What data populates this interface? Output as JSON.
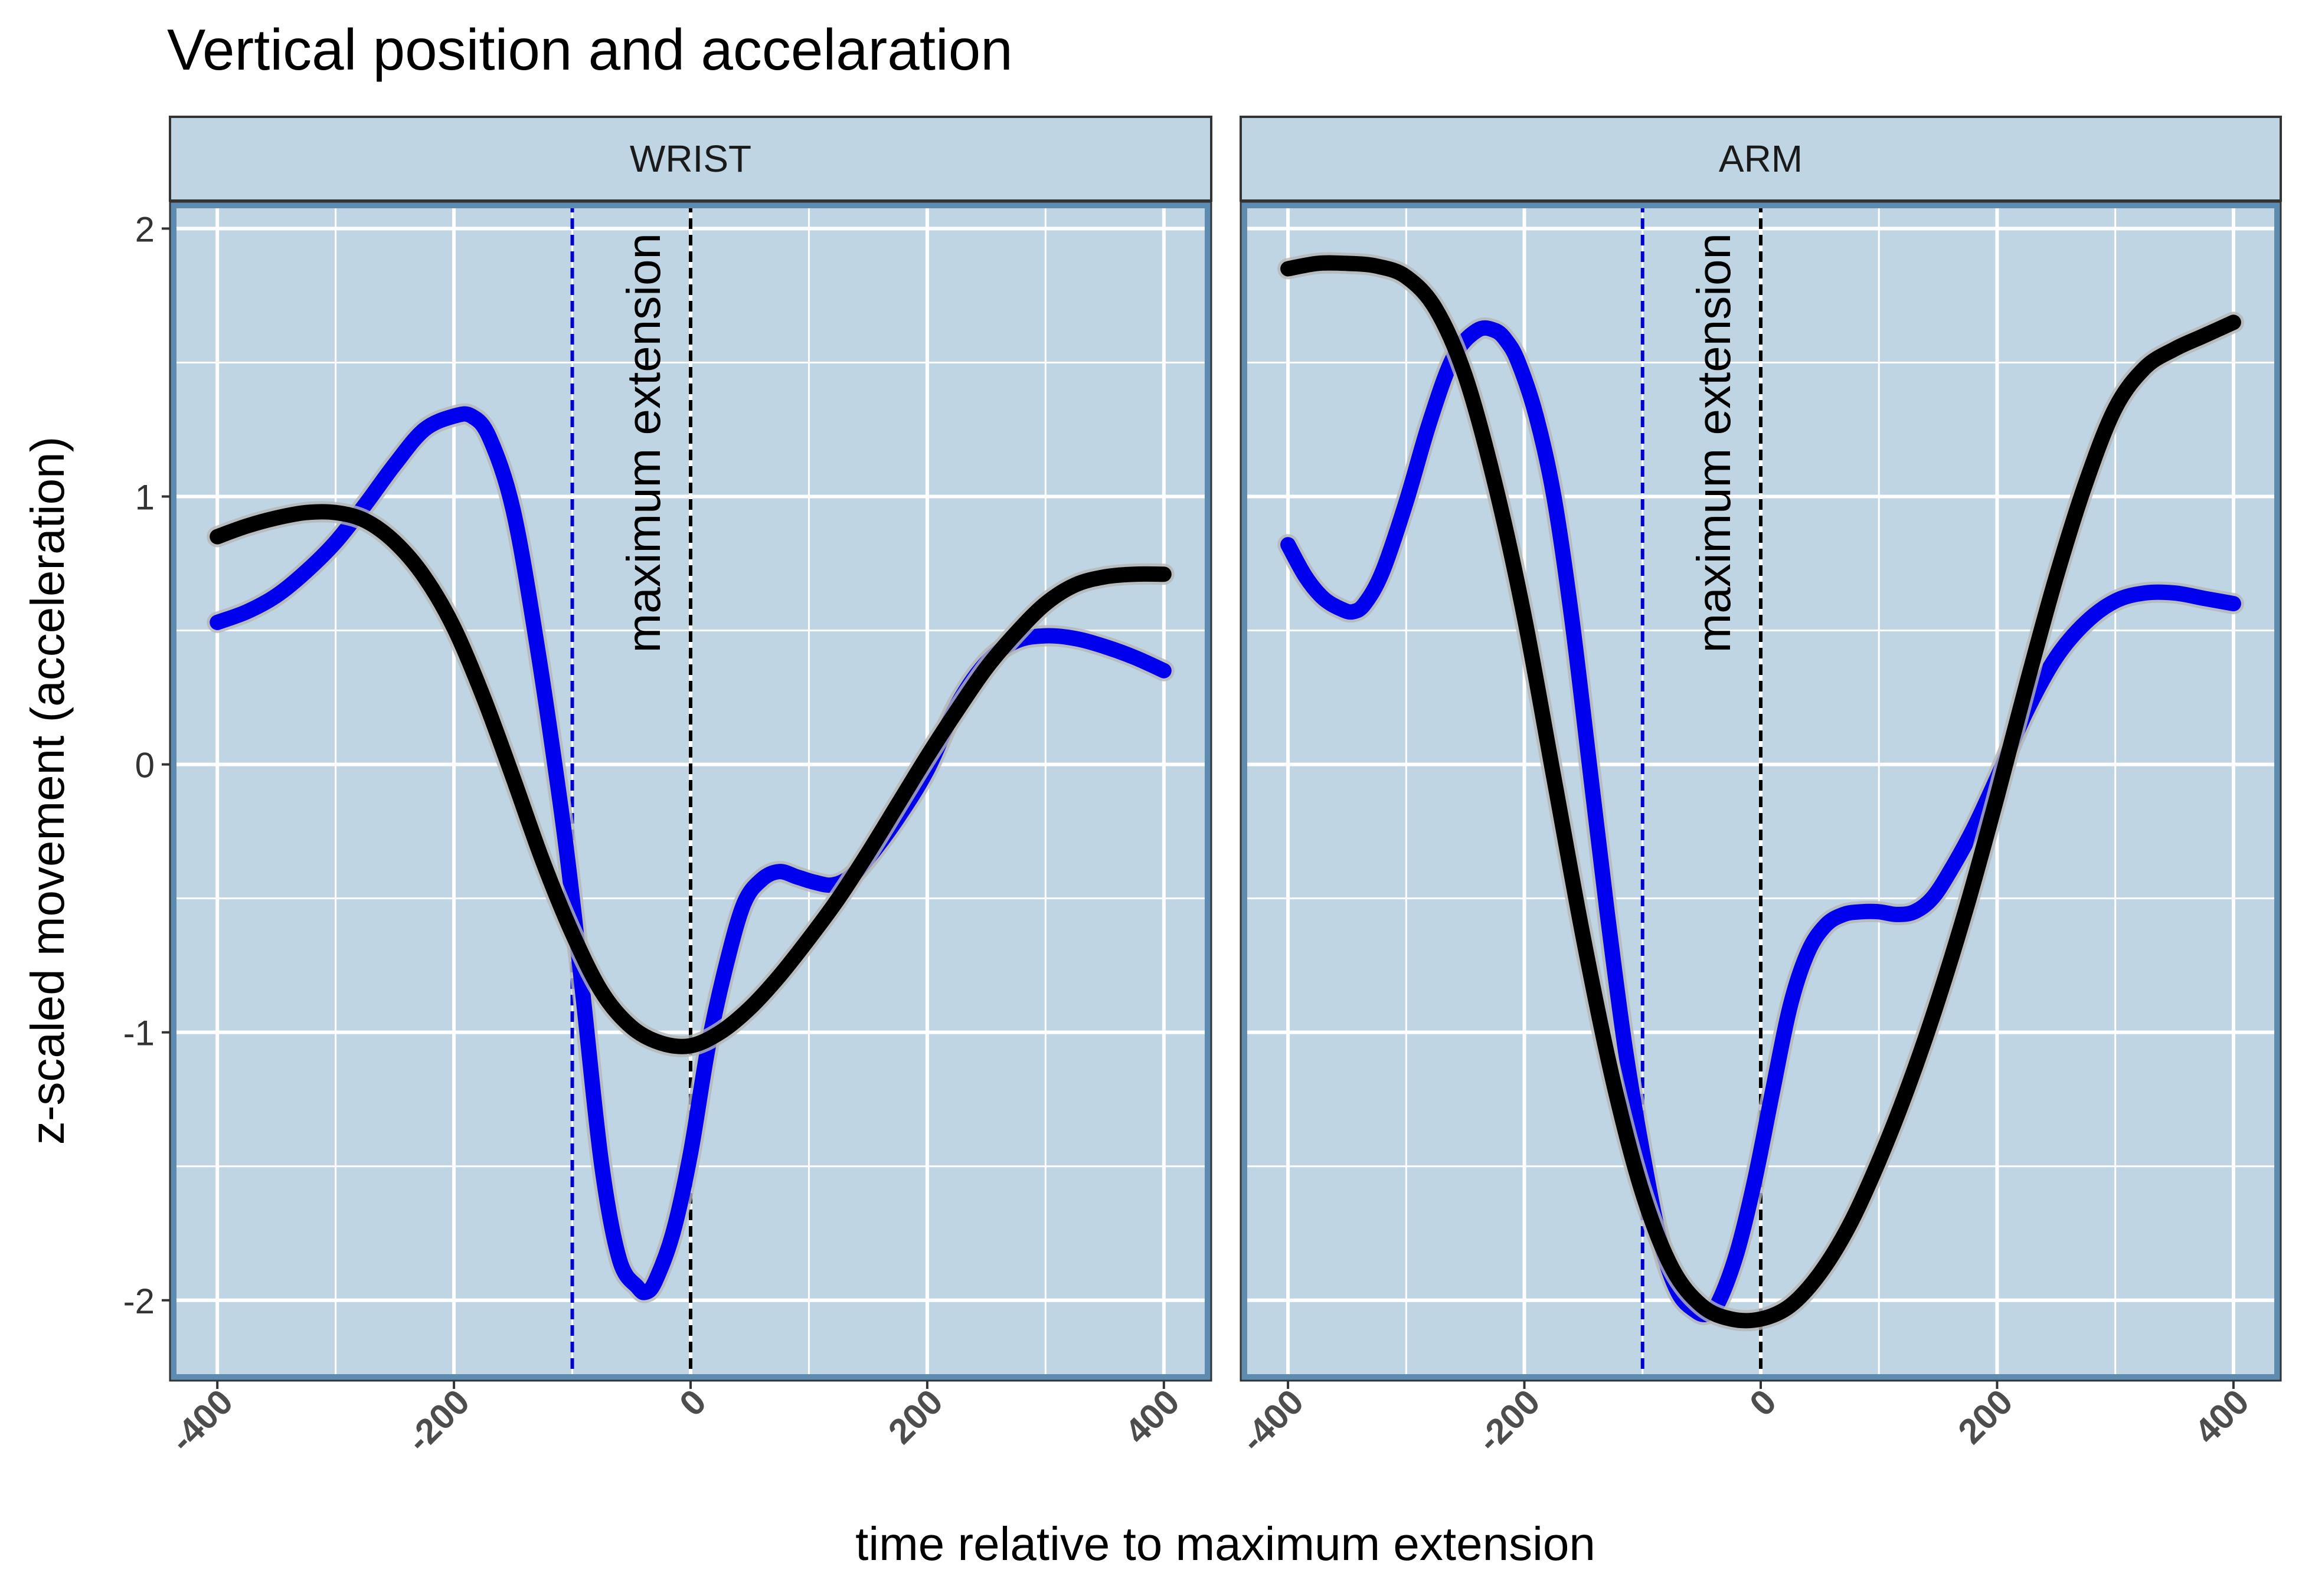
{
  "chart_data": {
    "type": "line",
    "title": "Vertical position and accelaration",
    "xlabel": "time relative to maximum extension",
    "ylabel": "z-scaled movement (acceleration)",
    "xlim": [
      -440,
      440
    ],
    "ylim": [
      -2.3,
      2.1
    ],
    "x_ticks": [
      -400,
      -200,
      0,
      200,
      400
    ],
    "x_tick_labels": [
      "-400",
      "-200",
      "0",
      "200",
      "400"
    ],
    "y_ticks": [
      -2,
      -1,
      0,
      1,
      2
    ],
    "y_tick_labels": [
      "-2",
      "-1",
      "0",
      "1",
      "2"
    ],
    "grid": true,
    "legend": "none",
    "colors": {
      "panel_bg": "#bfd5e4",
      "panel_border": "#5d8cb0",
      "strip_bg": "#bfd5e4",
      "grid": "#ffffff",
      "blue_series": "#0000ee",
      "black_series": "#000000",
      "band": "#b5b5b5",
      "vline_blue": "#0000cc",
      "vline_black": "#000000"
    },
    "vlines": [
      {
        "x": -100,
        "style": "dashed",
        "color": "blue"
      },
      {
        "x": 0,
        "style": "dashed",
        "color": "black"
      }
    ],
    "annotation": {
      "text": "maximum extension",
      "x": -40,
      "y": 1.2,
      "rotation": -90
    },
    "panels": [
      {
        "strip_label": "WRIST",
        "series": [
          {
            "name": "blue",
            "x": [
              -400,
              -375,
              -350,
              -325,
              -300,
              -275,
              -250,
              -225,
              -200,
              -185,
              -170,
              -150,
              -130,
              -110,
              -100,
              -90,
              -75,
              -60,
              -45,
              -38,
              -30,
              -15,
              0,
              15,
              30,
              45,
              60,
              75,
              90,
              105,
              120,
              135,
              150,
              175,
              200,
              225,
              250,
              275,
              300,
              325,
              350,
              375,
              400
            ],
            "y": [
              0.53,
              0.57,
              0.63,
              0.72,
              0.83,
              0.97,
              1.12,
              1.25,
              1.3,
              1.3,
              1.22,
              0.95,
              0.45,
              -0.15,
              -0.5,
              -0.9,
              -1.5,
              -1.85,
              -1.95,
              -1.97,
              -1.93,
              -1.75,
              -1.45,
              -1.05,
              -0.75,
              -0.52,
              -0.43,
              -0.4,
              -0.42,
              -0.44,
              -0.45,
              -0.42,
              -0.35,
              -0.2,
              -0.02,
              0.22,
              0.38,
              0.46,
              0.48,
              0.47,
              0.44,
              0.4,
              0.35
            ]
          },
          {
            "name": "black",
            "x": [
              -400,
              -375,
              -350,
              -325,
              -300,
              -275,
              -250,
              -225,
              -200,
              -175,
              -150,
              -125,
              -100,
              -75,
              -50,
              -25,
              0,
              25,
              50,
              75,
              100,
              125,
              150,
              175,
              200,
              225,
              250,
              275,
              300,
              325,
              350,
              375,
              400
            ],
            "y": [
              0.85,
              0.89,
              0.92,
              0.94,
              0.94,
              0.91,
              0.83,
              0.7,
              0.51,
              0.25,
              -0.05,
              -0.36,
              -0.63,
              -0.85,
              -0.98,
              -1.04,
              -1.05,
              -1.0,
              -0.91,
              -0.79,
              -0.65,
              -0.5,
              -0.33,
              -0.15,
              0.03,
              0.2,
              0.36,
              0.49,
              0.6,
              0.67,
              0.7,
              0.71,
              0.71
            ]
          }
        ]
      },
      {
        "strip_label": "ARM",
        "series": [
          {
            "name": "blue",
            "x": [
              -400,
              -385,
              -370,
              -355,
              -345,
              -335,
              -320,
              -300,
              -280,
              -260,
              -240,
              -225,
              -215,
              -205,
              -190,
              -175,
              -160,
              -145,
              -130,
              -115,
              -100,
              -85,
              -70,
              -55,
              -45,
              -35,
              -20,
              -5,
              10,
              25,
              40,
              55,
              70,
              85,
              100,
              115,
              130,
              145,
              160,
              180,
              200,
              225,
              250,
              275,
              300,
              325,
              350,
              375,
              400
            ],
            "y": [
              0.82,
              0.7,
              0.62,
              0.58,
              0.57,
              0.6,
              0.72,
              0.98,
              1.28,
              1.52,
              1.62,
              1.62,
              1.58,
              1.5,
              1.3,
              1.0,
              0.55,
              0.0,
              -0.55,
              -1.05,
              -1.45,
              -1.78,
              -1.97,
              -2.04,
              -2.05,
              -2.0,
              -1.82,
              -1.55,
              -1.22,
              -0.9,
              -0.7,
              -0.6,
              -0.56,
              -0.55,
              -0.55,
              -0.56,
              -0.55,
              -0.5,
              -0.4,
              -0.24,
              -0.05,
              0.2,
              0.4,
              0.53,
              0.61,
              0.64,
              0.64,
              0.62,
              0.6
            ]
          },
          {
            "name": "black",
            "x": [
              -400,
              -375,
              -350,
              -325,
              -300,
              -275,
              -250,
              -225,
              -200,
              -175,
              -150,
              -125,
              -100,
              -75,
              -50,
              -25,
              0,
              25,
              50,
              75,
              100,
              125,
              150,
              175,
              200,
              225,
              250,
              275,
              300,
              325,
              350,
              375,
              400
            ],
            "y": [
              1.85,
              1.87,
              1.87,
              1.86,
              1.82,
              1.7,
              1.45,
              1.05,
              0.55,
              -0.05,
              -0.65,
              -1.18,
              -1.6,
              -1.88,
              -2.02,
              -2.07,
              -2.07,
              -2.02,
              -1.9,
              -1.72,
              -1.48,
              -1.2,
              -0.88,
              -0.52,
              -0.12,
              0.3,
              0.7,
              1.05,
              1.33,
              1.48,
              1.55,
              1.6,
              1.65
            ]
          }
        ]
      }
    ]
  }
}
